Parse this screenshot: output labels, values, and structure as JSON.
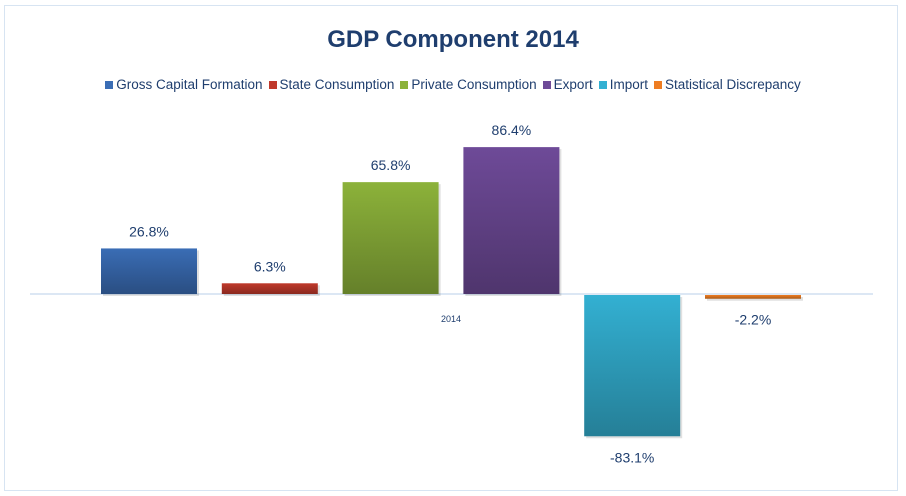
{
  "chart_data": {
    "type": "bar",
    "title": "GDP Component 2014",
    "categories": [
      "2014"
    ],
    "series": [
      {
        "name": "Gross Capital Formation",
        "values": [
          26.8
        ],
        "label": "26.8%",
        "color": "#3a6db5"
      },
      {
        "name": "State Consumption",
        "values": [
          6.3
        ],
        "label": "6.3%",
        "color": "#c0392b"
      },
      {
        "name": "Private Consumption",
        "values": [
          65.8
        ],
        "label": "65.8%",
        "color": "#8cb23a"
      },
      {
        "name": "Export",
        "values": [
          86.4
        ],
        "label": "86.4%",
        "color": "#6e4a98"
      },
      {
        "name": "Import",
        "values": [
          -83.1
        ],
        "label": "-83.1%",
        "color": "#33b0d2"
      },
      {
        "name": "Statistical Discrepancy",
        "values": [
          -2.2
        ],
        "label": "-2.2%",
        "color": "#ee7d22"
      }
    ],
    "xlabel": "",
    "ylabel": "",
    "ylim": [
      -90,
      90
    ],
    "grid": false,
    "legend": "top"
  }
}
